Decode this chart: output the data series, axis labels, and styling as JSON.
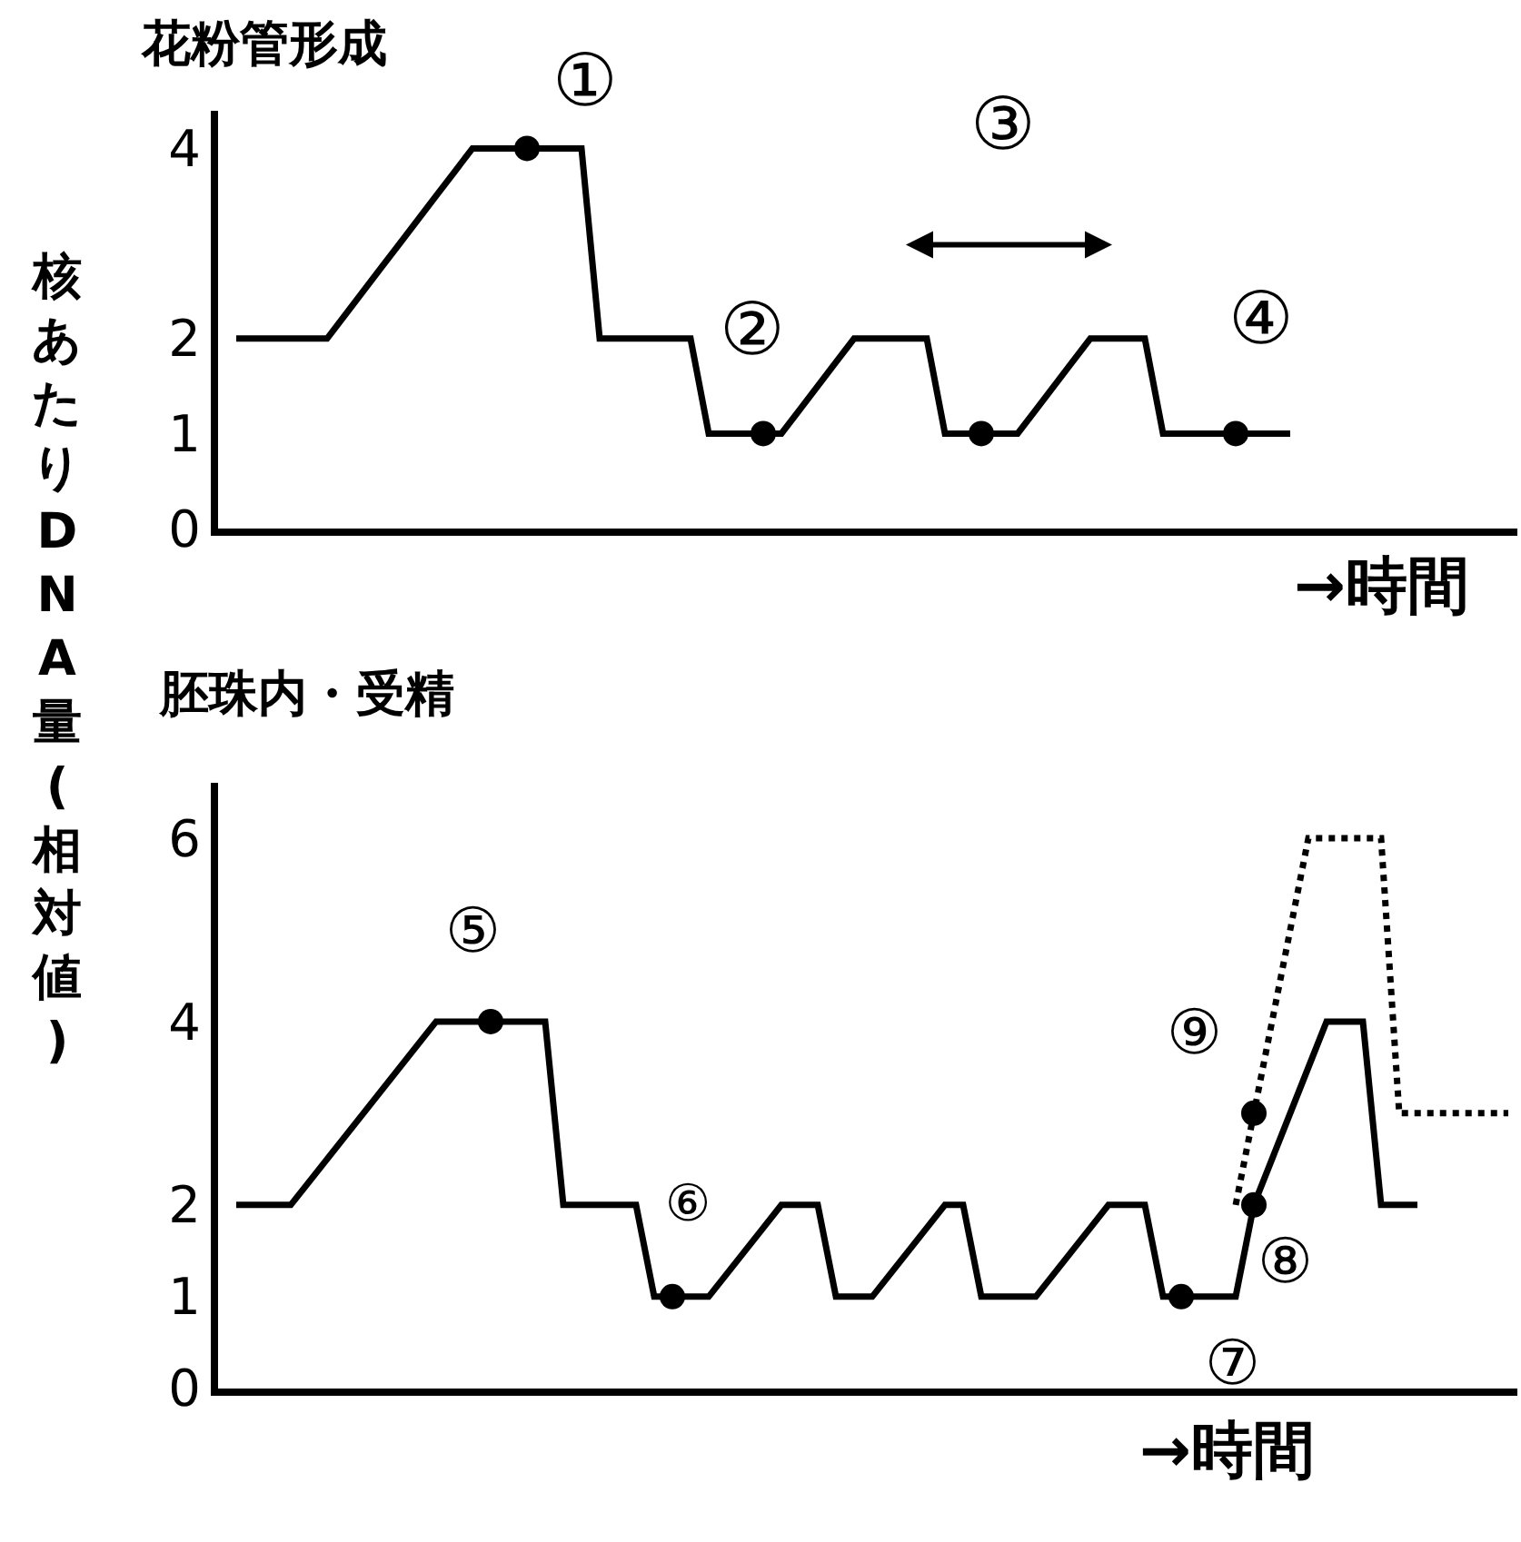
{
  "chart_data": [
    {
      "type": "line",
      "title": "花粉管形成",
      "xlabel": "→時間",
      "ylabel": "核あたりDNA量(相対値)",
      "ylim": [
        0,
        4.4
      ],
      "yticks": [
        0,
        1,
        2,
        4
      ],
      "tick_labels": "y",
      "categories": [
        null,
        null,
        null,
        null,
        null,
        null,
        null,
        null,
        null,
        null,
        null,
        null,
        null,
        null,
        null,
        null,
        null,
        null,
        null,
        null,
        null,
        null,
        null,
        null,
        null,
        null,
        null,
        null,
        null,
        null,
        null,
        null,
        null,
        null,
        null,
        null,
        null,
        null,
        null,
        null,
        null,
        null,
        null,
        null,
        null,
        null,
        null,
        null,
        null,
        null,
        null,
        null,
        null,
        null,
        null,
        null,
        null,
        null,
        null,
        null,
        null,
        null,
        null,
        null,
        null,
        null,
        null,
        null,
        null,
        null,
        null
      ],
      "series": [
        {
          "color": "#000000",
          "line_style": "solid",
          "values": [
            2,
            2,
            2,
            2,
            2,
            2,
            2.25,
            2.5,
            2.75,
            3,
            3.25,
            3.5,
            3.75,
            4,
            4,
            4,
            4,
            4,
            4,
            4,
            2,
            2,
            2,
            2,
            2,
            2,
            1,
            1,
            1,
            1,
            1,
            1.25,
            1.5,
            1.75,
            2,
            2,
            2,
            2,
            2,
            1,
            1,
            1,
            1,
            1,
            1.25,
            1.5,
            1.75,
            2,
            2,
            2,
            2,
            1,
            1,
            1,
            1,
            1,
            1,
            1,
            1,
            null,
            null,
            null,
            null,
            null,
            null,
            null,
            null,
            null,
            null,
            null,
            null
          ]
        },
        {
          "type": "scatter",
          "color": "#000000",
          "marker": "circle",
          "values": [
            null,
            null,
            null,
            null,
            null,
            null,
            null,
            null,
            null,
            null,
            null,
            null,
            null,
            null,
            null,
            null,
            4,
            null,
            null,
            null,
            null,
            null,
            null,
            null,
            null,
            null,
            null,
            null,
            null,
            1,
            null,
            null,
            null,
            null,
            null,
            null,
            null,
            null,
            null,
            null,
            null,
            1,
            null,
            null,
            null,
            null,
            null,
            null,
            null,
            null,
            null,
            null,
            null,
            null,
            null,
            1,
            null,
            null,
            null,
            null,
            null,
            null,
            null,
            null,
            null,
            null,
            null,
            null,
            null,
            null,
            null
          ]
        }
      ],
      "annotations": [
        "①",
        "②",
        "③",
        "④"
      ]
    },
    {
      "type": "line",
      "title": "胚珠内・受精",
      "xlabel": "→時間",
      "ylim": [
        0,
        6.6
      ],
      "yticks": [
        0,
        1,
        2,
        4,
        6
      ],
      "tick_labels": "y",
      "categories": [
        null,
        null,
        null,
        null,
        null,
        null,
        null,
        null,
        null,
        null,
        null,
        null,
        null,
        null,
        null,
        null,
        null,
        null,
        null,
        null,
        null,
        null,
        null,
        null,
        null,
        null,
        null,
        null,
        null,
        null,
        null,
        null,
        null,
        null,
        null,
        null,
        null,
        null,
        null,
        null,
        null,
        null,
        null,
        null,
        null,
        null,
        null,
        null,
        null,
        null,
        null,
        null,
        null,
        null,
        null,
        null,
        null,
        null,
        null,
        null,
        null,
        null,
        null,
        null,
        null,
        null,
        null,
        null,
        null,
        null,
        null
      ],
      "series": [
        {
          "color": "#000000",
          "line_style": "solid",
          "values": [
            2,
            2,
            2,
            2,
            2.25,
            2.5,
            2.75,
            3,
            3.25,
            3.5,
            3.75,
            4,
            4,
            4,
            4,
            4,
            4,
            4,
            2,
            2,
            2,
            2,
            2,
            1,
            1,
            1,
            1,
            1.25,
            1.5,
            1.75,
            2,
            2,
            2,
            1,
            1,
            1,
            1.25,
            1.5,
            1.75,
            2,
            2,
            1,
            1,
            1,
            1,
            1.25,
            1.5,
            1.75,
            2,
            2,
            2,
            1,
            1,
            1,
            1,
            1,
            2,
            2.5,
            3,
            3.5,
            4,
            4,
            4,
            2,
            2,
            2,
            null,
            null,
            null,
            null,
            null
          ]
        },
        {
          "color": "#000000",
          "line_style": "dotted",
          "values": [
            null,
            null,
            null,
            null,
            null,
            null,
            null,
            null,
            null,
            null,
            null,
            null,
            null,
            null,
            null,
            null,
            null,
            null,
            null,
            null,
            null,
            null,
            null,
            null,
            null,
            null,
            null,
            null,
            null,
            null,
            null,
            null,
            null,
            null,
            null,
            null,
            null,
            null,
            null,
            null,
            null,
            null,
            null,
            null,
            null,
            null,
            null,
            null,
            null,
            null,
            null,
            null,
            null,
            null,
            null,
            2,
            3,
            4,
            5,
            6,
            6,
            6,
            6,
            6,
            3,
            3,
            3,
            3,
            3,
            3,
            3
          ]
        },
        {
          "type": "scatter",
          "color": "#000000",
          "marker": "circle",
          "values": [
            null,
            null,
            null,
            null,
            null,
            null,
            null,
            null,
            null,
            null,
            null,
            null,
            null,
            null,
            4,
            null,
            null,
            null,
            null,
            null,
            null,
            null,
            null,
            null,
            1,
            null,
            null,
            null,
            null,
            null,
            null,
            null,
            null,
            null,
            null,
            null,
            null,
            null,
            null,
            null,
            null,
            null,
            null,
            null,
            null,
            null,
            null,
            null,
            null,
            null,
            null,
            null,
            1,
            null,
            null,
            null,
            2,
            null,
            null,
            null,
            null,
            null,
            null,
            null,
            null,
            null,
            null,
            null,
            null,
            null,
            null
          ]
        },
        {
          "type": "scatter",
          "color": "#000000",
          "marker": "circle",
          "values": [
            null,
            null,
            null,
            null,
            null,
            null,
            null,
            null,
            null,
            null,
            null,
            null,
            null,
            null,
            null,
            null,
            null,
            null,
            null,
            null,
            null,
            null,
            null,
            null,
            null,
            null,
            null,
            null,
            null,
            null,
            null,
            null,
            null,
            null,
            null,
            null,
            null,
            null,
            null,
            null,
            null,
            null,
            null,
            null,
            null,
            null,
            null,
            null,
            null,
            null,
            null,
            null,
            null,
            null,
            null,
            null,
            3,
            null,
            null,
            null,
            null,
            null,
            null,
            null,
            null,
            null,
            null,
            null,
            null,
            null,
            null
          ]
        }
      ],
      "annotations": [
        "⑤",
        "⑥",
        "⑦",
        "⑧",
        "⑨"
      ]
    }
  ]
}
